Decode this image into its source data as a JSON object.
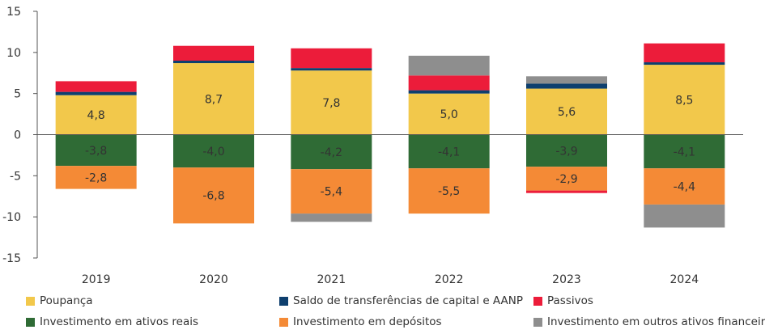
{
  "chart_data": {
    "type": "bar",
    "stacked": true,
    "categories": [
      "2019",
      "2020",
      "2021",
      "2022",
      "2023",
      "2024"
    ],
    "ylim": [
      -15,
      15
    ],
    "yticks": [
      15,
      10,
      5,
      0,
      -5,
      -10,
      -15
    ],
    "grid": false,
    "legend_position": "bottom",
    "series": [
      {
        "name": "Poupança",
        "color": "#F2C84B",
        "values": [
          4.8,
          8.7,
          7.8,
          5.0,
          5.6,
          8.5
        ],
        "labeled": true
      },
      {
        "name": "Saldo de transferências de capital e AANP",
        "color": "#0E3F6E",
        "values": [
          0.4,
          0.3,
          0.3,
          0.4,
          0.6,
          0.3
        ],
        "labeled": false
      },
      {
        "name": "Passivos",
        "color": "#EC1C3A",
        "values": [
          1.3,
          1.8,
          2.4,
          1.8,
          0.0,
          2.3
        ],
        "labeled": false
      },
      {
        "name": "Investimento em ativos reais",
        "color": "#2F6B35",
        "values": [
          -3.8,
          -4.0,
          -4.2,
          -4.1,
          -3.9,
          -4.1
        ],
        "labeled": true
      },
      {
        "name": "Investimento em depósitos",
        "color": "#F48A36",
        "values": [
          -2.8,
          -6.8,
          -5.4,
          -5.5,
          -2.9,
          -4.4
        ],
        "labeled": true
      },
      {
        "name": "Investimento em outros ativos financeiros",
        "color": "#8E8E8E",
        "values": [
          0.0,
          0.0,
          0.0,
          2.4,
          0.9,
          0.0
        ],
        "labeled": false
      }
    ],
    "extra_segments": [
      {
        "category": "2021",
        "name": "Investimento em outros ativos financeiros",
        "value": -1.0
      },
      {
        "category": "2023",
        "name": "Passivos",
        "value": -0.3
      },
      {
        "category": "2024",
        "name": "Investimento em outros ativos financeiros",
        "value": -2.8
      }
    ]
  },
  "legend": [
    {
      "label": "Poupança",
      "color": "#F2C84B"
    },
    {
      "label": "Saldo de transferências de capital e AANP",
      "color": "#0E3F6E"
    },
    {
      "label": "Passivos",
      "color": "#EC1C3A"
    },
    {
      "label": "Investimento em ativos reais",
      "color": "#2F6B35"
    },
    {
      "label": "Investimento em depósitos",
      "color": "#F48A36"
    },
    {
      "label": "Investimento em outros ativos financeiros",
      "color": "#8E8E8E"
    }
  ]
}
